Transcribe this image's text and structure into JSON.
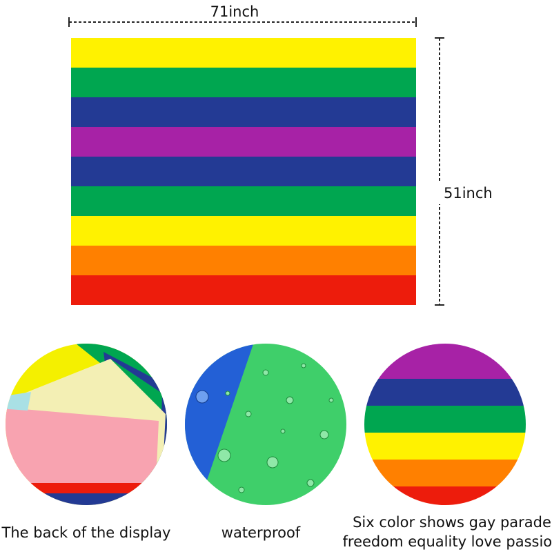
{
  "dimensions": {
    "width": "71inch",
    "height": "51inch"
  },
  "features": [
    {
      "caption": [
        "The back of the display"
      ]
    },
    {
      "caption": [
        "waterproof"
      ]
    },
    {
      "caption": [
        "Six color shows gay parade",
        "freedom equality love passion"
      ]
    }
  ]
}
